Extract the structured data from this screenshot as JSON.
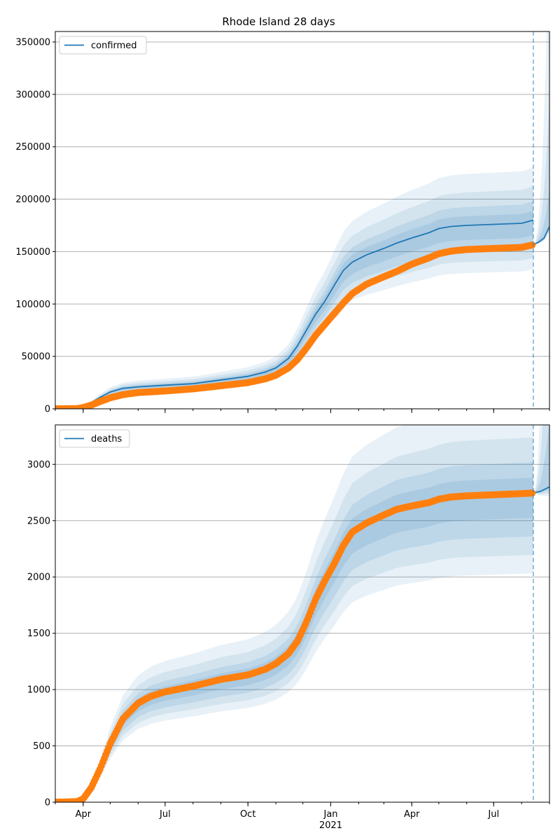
{
  "chart_data": [
    {
      "type": "line",
      "title": "Rhode Island 28 days",
      "legend": {
        "position": "top-left",
        "entries": [
          "confirmed"
        ]
      },
      "grid": "y",
      "x_range": [
        "2020-03-01",
        "2021-09-01"
      ],
      "x_ticks": [
        {
          "date": "2020-04-01",
          "label": "Apr"
        },
        {
          "date": "2020-07-01",
          "label": "Jul"
        },
        {
          "date": "2020-10-01",
          "label": "Oct"
        },
        {
          "date": "2021-01-01",
          "label": "Jan"
        },
        {
          "date": "2021-04-01",
          "label": "Apr"
        },
        {
          "date": "2021-07-01",
          "label": "Jul"
        }
      ],
      "show_x_labels": false,
      "year_label": "",
      "ylim": [
        0,
        360000
      ],
      "y_ticks": [
        0,
        50000,
        100000,
        150000,
        200000,
        250000,
        300000,
        350000
      ],
      "forecast_start": "2021-08-14",
      "series": [
        {
          "name": "confirmed",
          "role": "model",
          "color": "#1f77b4",
          "points": [
            [
              "2020-03-01",
              0
            ],
            [
              "2020-03-20",
              200
            ],
            [
              "2020-04-01",
              2000
            ],
            [
              "2020-04-10",
              6000
            ],
            [
              "2020-04-20",
              11000
            ],
            [
              "2020-05-01",
              16000
            ],
            [
              "2020-05-15",
              19500
            ],
            [
              "2020-06-01",
              21000
            ],
            [
              "2020-07-01",
              22500
            ],
            [
              "2020-08-01",
              24000
            ],
            [
              "2020-09-01",
              27500
            ],
            [
              "2020-10-01",
              31000
            ],
            [
              "2020-10-20",
              35000
            ],
            [
              "2020-11-01",
              39000
            ],
            [
              "2020-11-15",
              48000
            ],
            [
              "2020-11-25",
              60000
            ],
            [
              "2020-12-05",
              75000
            ],
            [
              "2020-12-15",
              90000
            ],
            [
              "2020-12-25",
              102000
            ],
            [
              "2021-01-05",
              118000
            ],
            [
              "2021-01-15",
              132000
            ],
            [
              "2021-01-25",
              140000
            ],
            [
              "2021-02-10",
              147000
            ],
            [
              "2021-03-01",
              153000
            ],
            [
              "2021-03-15",
              158000
            ],
            [
              "2021-04-01",
              163000
            ],
            [
              "2021-04-20",
              168000
            ],
            [
              "2021-05-01",
              172000
            ],
            [
              "2021-05-15",
              174000
            ],
            [
              "2021-06-01",
              175000
            ],
            [
              "2021-07-01",
              176000
            ],
            [
              "2021-08-01",
              177000
            ],
            [
              "2021-08-14",
              180000
            ]
          ]
        },
        {
          "name": "",
          "role": "observed",
          "color": "#ff7f0e",
          "points": [
            [
              "2020-03-01",
              0
            ],
            [
              "2020-03-25",
              200
            ],
            [
              "2020-04-01",
              1200
            ],
            [
              "2020-04-10",
              3500
            ],
            [
              "2020-04-20",
              7000
            ],
            [
              "2020-05-01",
              10500
            ],
            [
              "2020-05-15",
              13500
            ],
            [
              "2020-06-01",
              15500
            ],
            [
              "2020-07-01",
              17000
            ],
            [
              "2020-08-01",
              19000
            ],
            [
              "2020-09-01",
              22000
            ],
            [
              "2020-10-01",
              25000
            ],
            [
              "2020-10-20",
              28500
            ],
            [
              "2020-11-01",
              32000
            ],
            [
              "2020-11-15",
              39000
            ],
            [
              "2020-11-25",
              47000
            ],
            [
              "2020-12-05",
              58000
            ],
            [
              "2020-12-15",
              70000
            ],
            [
              "2020-12-25",
              80000
            ],
            [
              "2021-01-05",
              91000
            ],
            [
              "2021-01-15",
              101000
            ],
            [
              "2021-01-25",
              110000
            ],
            [
              "2021-02-10",
              119000
            ],
            [
              "2021-03-01",
              126000
            ],
            [
              "2021-03-15",
              131000
            ],
            [
              "2021-04-01",
              138000
            ],
            [
              "2021-04-20",
              144000
            ],
            [
              "2021-05-01",
              148000
            ],
            [
              "2021-05-15",
              150500
            ],
            [
              "2021-06-01",
              152000
            ],
            [
              "2021-07-01",
              153000
            ],
            [
              "2021-08-01",
              154000
            ],
            [
              "2021-08-14",
              156500
            ]
          ]
        },
        {
          "name": "",
          "role": "forecast",
          "color": "#1f77b4",
          "points": [
            [
              "2021-08-14",
              156500
            ],
            [
              "2021-08-20",
              159000
            ],
            [
              "2021-08-26",
              163000
            ],
            [
              "2021-09-01",
              174000
            ]
          ]
        }
      ]
    },
    {
      "type": "line",
      "title": "",
      "legend": {
        "position": "top-left",
        "entries": [
          "deaths"
        ]
      },
      "grid": "y",
      "x_range": [
        "2020-03-01",
        "2021-09-01"
      ],
      "x_ticks": [
        {
          "date": "2020-04-01",
          "label": "Apr"
        },
        {
          "date": "2020-07-01",
          "label": "Jul"
        },
        {
          "date": "2020-10-01",
          "label": "Oct"
        },
        {
          "date": "2021-01-01",
          "label": "Jan"
        },
        {
          "date": "2021-04-01",
          "label": "Apr"
        },
        {
          "date": "2021-07-01",
          "label": "Jul"
        }
      ],
      "show_x_labels": true,
      "year_label": "2021",
      "ylim": [
        0,
        3350
      ],
      "y_ticks": [
        0,
        500,
        1000,
        1500,
        2000,
        2500,
        3000
      ],
      "forecast_start": "2021-08-14",
      "series": [
        {
          "name": "deaths",
          "role": "model",
          "color": "#1f77b4",
          "points": [
            [
              "2020-03-01",
              0
            ],
            [
              "2020-03-25",
              5
            ],
            [
              "2020-04-01",
              30
            ],
            [
              "2020-04-10",
              130
            ],
            [
              "2020-04-20",
              300
            ],
            [
              "2020-05-01",
              520
            ],
            [
              "2020-05-15",
              740
            ],
            [
              "2020-06-01",
              880
            ],
            [
              "2020-06-15",
              940
            ],
            [
              "2020-07-01",
              980
            ],
            [
              "2020-08-01",
              1030
            ],
            [
              "2020-09-01",
              1090
            ],
            [
              "2020-10-01",
              1130
            ],
            [
              "2020-10-20",
              1180
            ],
            [
              "2020-11-01",
              1230
            ],
            [
              "2020-11-15",
              1320
            ],
            [
              "2020-11-25",
              1430
            ],
            [
              "2020-12-05",
              1600
            ],
            [
              "2020-12-15",
              1800
            ],
            [
              "2020-12-25",
              1960
            ],
            [
              "2021-01-05",
              2120
            ],
            [
              "2021-01-15",
              2280
            ],
            [
              "2021-01-25",
              2400
            ],
            [
              "2021-02-10",
              2480
            ],
            [
              "2021-03-01",
              2550
            ],
            [
              "2021-03-15",
              2600
            ],
            [
              "2021-04-01",
              2630
            ],
            [
              "2021-04-20",
              2660
            ],
            [
              "2021-05-01",
              2690
            ],
            [
              "2021-05-15",
              2710
            ],
            [
              "2021-06-01",
              2720
            ],
            [
              "2021-07-01",
              2730
            ],
            [
              "2021-08-01",
              2740
            ],
            [
              "2021-08-14",
              2745
            ]
          ]
        },
        {
          "name": "",
          "role": "observed",
          "color": "#ff7f0e",
          "points": [
            [
              "2020-03-01",
              0
            ],
            [
              "2020-03-25",
              5
            ],
            [
              "2020-04-01",
              30
            ],
            [
              "2020-04-10",
              130
            ],
            [
              "2020-04-20",
              300
            ],
            [
              "2020-05-01",
              520
            ],
            [
              "2020-05-15",
              740
            ],
            [
              "2020-06-01",
              880
            ],
            [
              "2020-06-15",
              940
            ],
            [
              "2020-07-01",
              980
            ],
            [
              "2020-08-01",
              1030
            ],
            [
              "2020-09-01",
              1090
            ],
            [
              "2020-10-01",
              1130
            ],
            [
              "2020-10-20",
              1180
            ],
            [
              "2020-11-01",
              1230
            ],
            [
              "2020-11-15",
              1320
            ],
            [
              "2020-11-25",
              1430
            ],
            [
              "2020-12-05",
              1600
            ],
            [
              "2020-12-15",
              1800
            ],
            [
              "2020-12-25",
              1960
            ],
            [
              "2021-01-05",
              2120
            ],
            [
              "2021-01-15",
              2280
            ],
            [
              "2021-01-25",
              2400
            ],
            [
              "2021-02-10",
              2480
            ],
            [
              "2021-03-01",
              2550
            ],
            [
              "2021-03-15",
              2600
            ],
            [
              "2021-04-01",
              2630
            ],
            [
              "2021-04-20",
              2660
            ],
            [
              "2021-05-01",
              2690
            ],
            [
              "2021-05-15",
              2710
            ],
            [
              "2021-06-01",
              2720
            ],
            [
              "2021-07-01",
              2730
            ],
            [
              "2021-08-01",
              2740
            ],
            [
              "2021-08-14",
              2745
            ]
          ]
        },
        {
          "name": "",
          "role": "forecast",
          "color": "#1f77b4",
          "points": [
            [
              "2021-08-14",
              2745
            ],
            [
              "2021-08-22",
              2760
            ],
            [
              "2021-09-01",
              2800
            ]
          ]
        }
      ]
    }
  ]
}
